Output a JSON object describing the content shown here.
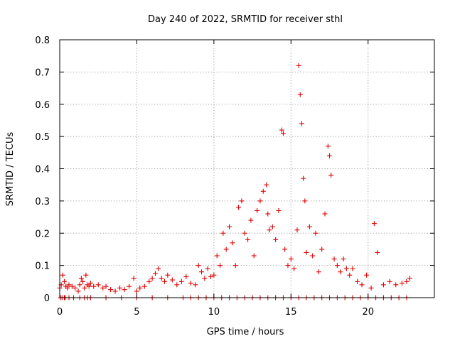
{
  "chart_data": {
    "type": "scatter",
    "title": "Day 240 of 2022, SRMTID for receiver sthl",
    "xlabel": "GPS time / hours",
    "ylabel": "SRMTID / TECUs",
    "xlim": [
      0,
      24.3
    ],
    "ylim": [
      0,
      0.8
    ],
    "xticks": [
      0,
      5,
      10,
      15,
      20
    ],
    "xtick_labels": [
      "0",
      "5",
      "10",
      "15",
      "20"
    ],
    "yticks": [
      0,
      0.1,
      0.2,
      0.3,
      0.4,
      0.5,
      0.6,
      0.7,
      0.8
    ],
    "ytick_labels": [
      "0",
      "0.1",
      "0.2",
      "0.3",
      "0.4",
      "0.5",
      "0.6",
      "0.7",
      "0.8"
    ],
    "grid": true,
    "marker": "+",
    "color": "#e00000",
    "series": [
      {
        "name": "SRMTID",
        "x": [
          0.0,
          0.1,
          0.2,
          0.3,
          0.4,
          0.5,
          0.6,
          0.8,
          1.0,
          1.2,
          1.3,
          1.4,
          1.5,
          1.6,
          1.7,
          1.8,
          1.9,
          2.0,
          2.2,
          2.5,
          2.8,
          3.0,
          3.3,
          3.6,
          3.9,
          4.2,
          4.5,
          4.8,
          5.0,
          5.2,
          5.5,
          5.8,
          6.0,
          6.2,
          6.4,
          6.6,
          6.8,
          7.0,
          7.3,
          7.6,
          7.9,
          8.2,
          8.5,
          8.8,
          9.0,
          9.2,
          9.4,
          9.6,
          9.8,
          10.0,
          10.2,
          10.4,
          10.6,
          10.8,
          11.0,
          11.2,
          11.4,
          11.6,
          11.8,
          12.0,
          12.2,
          12.4,
          12.6,
          12.8,
          13.0,
          13.2,
          13.4,
          13.5,
          13.6,
          13.8,
          14.0,
          14.2,
          14.4,
          14.5,
          14.6,
          14.8,
          15.0,
          15.2,
          15.4,
          15.5,
          15.6,
          15.7,
          15.8,
          15.9,
          16.0,
          16.2,
          16.4,
          16.6,
          16.8,
          17.0,
          17.2,
          17.4,
          17.5,
          17.6,
          17.8,
          18.0,
          18.2,
          18.4,
          18.6,
          18.8,
          19.0,
          19.3,
          19.6,
          19.9,
          20.2,
          20.4,
          20.6,
          21.0,
          21.4,
          21.8,
          22.2,
          22.5,
          22.7,
          0.05,
          0.15,
          0.3,
          0.35,
          0.6,
          0.9,
          1.3,
          1.6,
          1.8,
          2.0,
          3.0,
          4.0,
          5.0,
          6.0,
          7.0,
          8.0,
          8.5,
          9.0,
          9.5,
          10.0,
          10.5,
          11.0,
          11.5,
          12.0,
          12.5,
          13.0,
          13.5,
          14.0,
          14.5,
          15.0,
          15.5,
          16.0,
          16.5,
          17.0,
          17.5,
          18.0,
          18.5,
          19.0,
          19.5,
          20.0,
          20.5,
          21.0,
          21.5,
          22.0,
          22.5
        ],
        "y": [
          0.03,
          0.04,
          0.07,
          0.05,
          0.035,
          0.03,
          0.04,
          0.035,
          0.03,
          0.02,
          0.04,
          0.06,
          0.05,
          0.03,
          0.07,
          0.04,
          0.035,
          0.045,
          0.035,
          0.04,
          0.03,
          0.035,
          0.025,
          0.02,
          0.03,
          0.025,
          0.035,
          0.06,
          0.02,
          0.03,
          0.035,
          0.05,
          0.06,
          0.075,
          0.09,
          0.06,
          0.05,
          0.07,
          0.055,
          0.04,
          0.05,
          0.065,
          0.045,
          0.04,
          0.1,
          0.08,
          0.06,
          0.09,
          0.065,
          0.07,
          0.13,
          0.1,
          0.2,
          0.15,
          0.22,
          0.17,
          0.1,
          0.28,
          0.3,
          0.2,
          0.18,
          0.24,
          0.13,
          0.27,
          0.3,
          0.33,
          0.35,
          0.26,
          0.21,
          0.22,
          0.18,
          0.27,
          0.52,
          0.51,
          0.15,
          0.1,
          0.12,
          0.09,
          0.21,
          0.72,
          0.63,
          0.54,
          0.37,
          0.3,
          0.14,
          0.22,
          0.13,
          0.2,
          0.08,
          0.15,
          0.26,
          0.47,
          0.44,
          0.38,
          0.12,
          0.1,
          0.08,
          0.12,
          0.09,
          0.07,
          0.09,
          0.05,
          0.04,
          0.07,
          0.03,
          0.23,
          0.14,
          0.04,
          0.05,
          0.04,
          0.045,
          0.05,
          0.06,
          0,
          0,
          0,
          0,
          0,
          0,
          0,
          0,
          0,
          0,
          0,
          0,
          0,
          0,
          0,
          0,
          0,
          0,
          0,
          0,
          0,
          0,
          0,
          0,
          0,
          0,
          0,
          0,
          0,
          0,
          0,
          0,
          0,
          0,
          0,
          0,
          0,
          0,
          0,
          0,
          0,
          0,
          0,
          0,
          0
        ]
      }
    ]
  }
}
